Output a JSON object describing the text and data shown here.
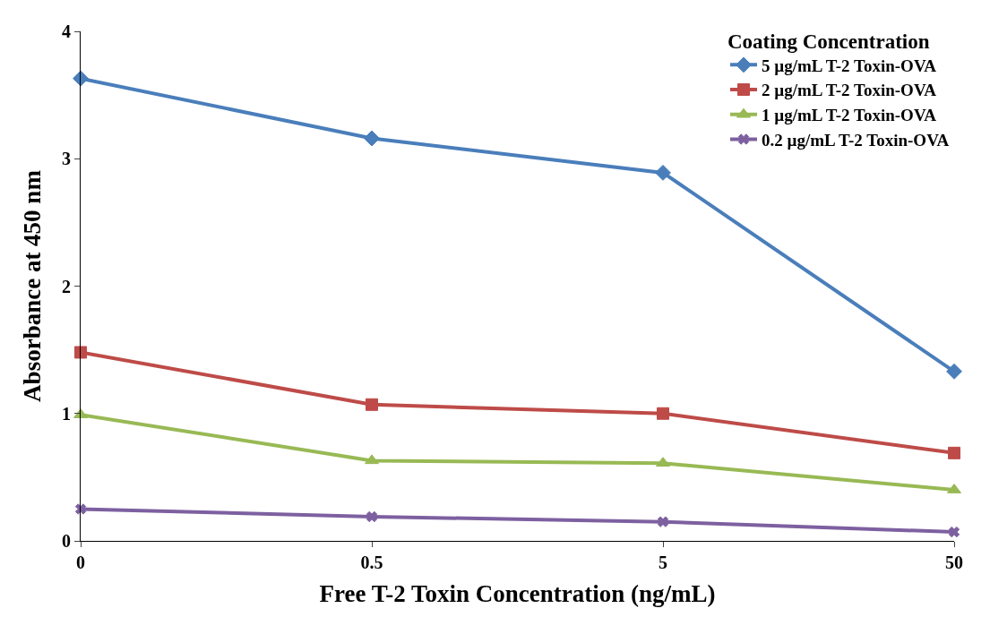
{
  "chart_data": {
    "type": "line",
    "xlabel": "Free T-2 Toxin Concentration (ng/mL)",
    "ylabel": "Absorbance at 450 nm",
    "legend_title": "Coating Concentration",
    "legend": "top right",
    "categories": [
      "0",
      "0.5",
      "5",
      "50"
    ],
    "ylim": [
      0,
      4
    ],
    "yticks": [
      0,
      1,
      2,
      3,
      4
    ],
    "series": [
      {
        "name": "5 µg/mL T-2 Toxin-OVA",
        "color": "#4a7ebb",
        "marker": "diamond",
        "values": [
          3.63,
          3.16,
          2.89,
          1.33
        ]
      },
      {
        "name": "2 µg/mL T-2 Toxin-OVA",
        "color": "#be4b48",
        "marker": "square",
        "values": [
          1.48,
          1.07,
          1.0,
          0.69
        ]
      },
      {
        "name": "1 µg/mL T-2 Toxin-OVA",
        "color": "#98b954",
        "marker": "triangle",
        "values": [
          0.99,
          0.63,
          0.61,
          0.4
        ]
      },
      {
        "name": "0.2 µg/mL T-2 Toxin-OVA",
        "color": "#7d60a0",
        "marker": "cross",
        "values": [
          0.25,
          0.19,
          0.15,
          0.07
        ]
      }
    ]
  }
}
